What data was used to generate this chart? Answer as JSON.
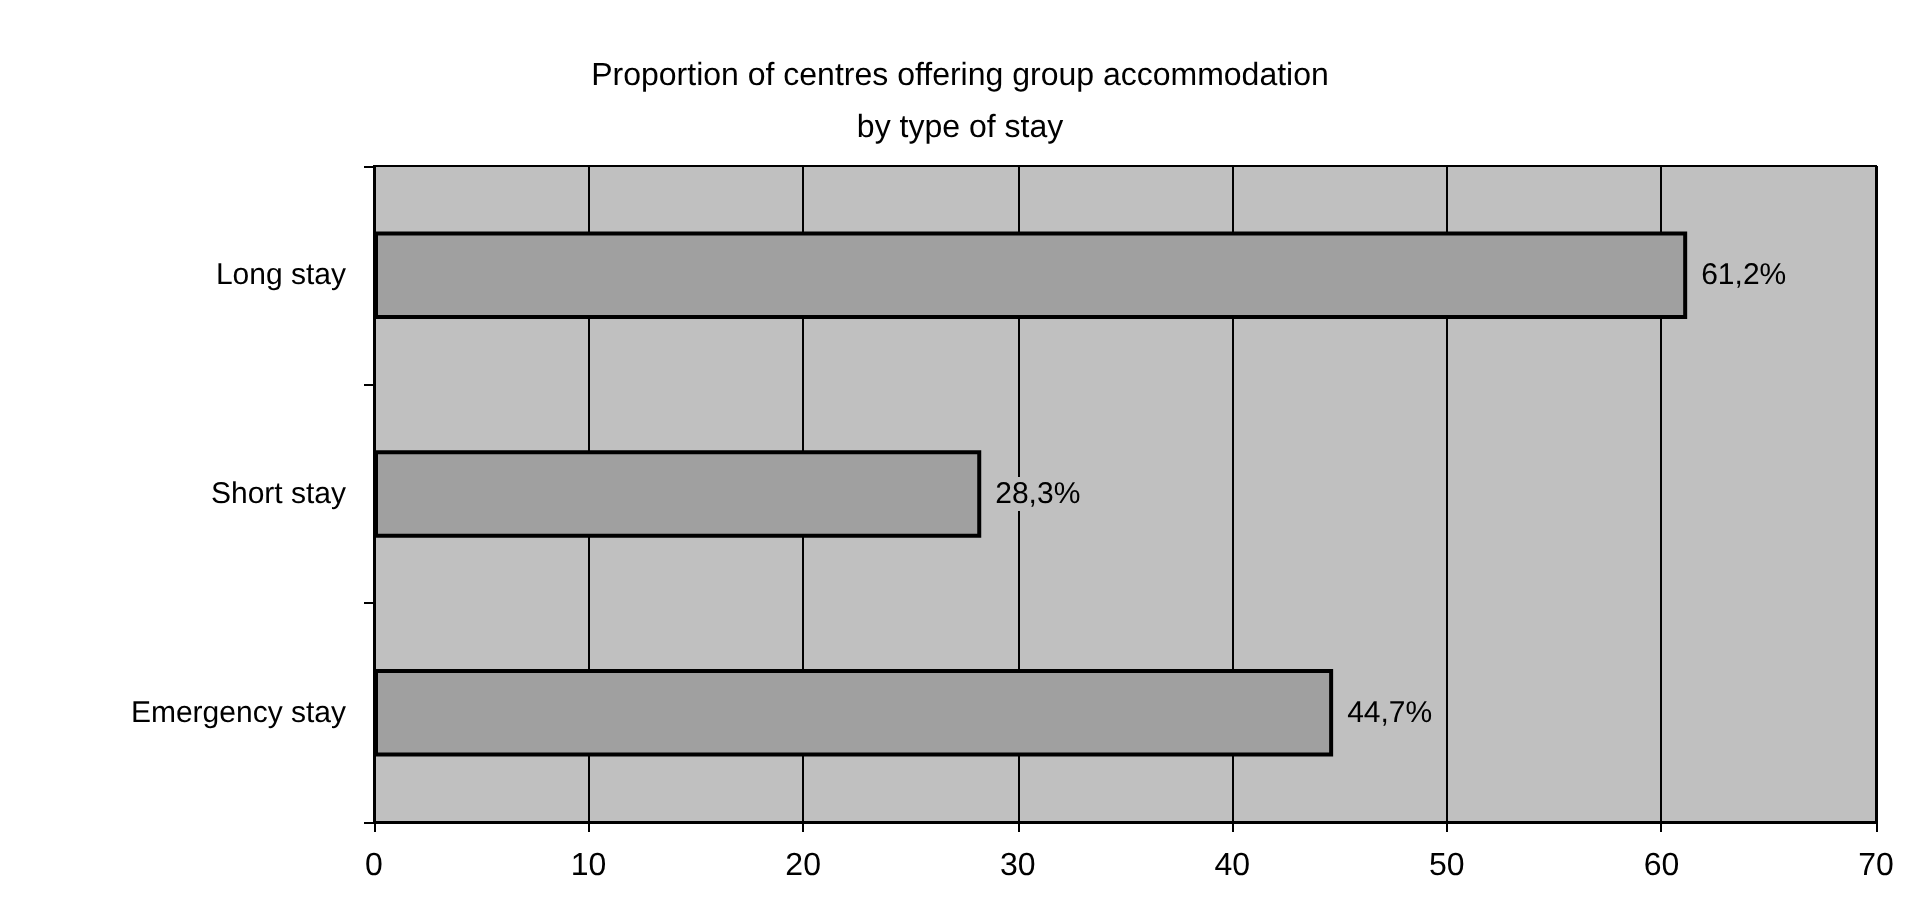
{
  "chart_data": {
    "type": "bar",
    "orientation": "horizontal",
    "title": "Proportion of centres offering group accommodation\nby type of stay",
    "categories": [
      "Long stay",
      "Short stay",
      "Emergency stay"
    ],
    "values": [
      61.2,
      28.3,
      44.7
    ],
    "value_labels": [
      "61,2%",
      "28,3%",
      "44,7%"
    ],
    "color": "#a0a0a0",
    "xlim": [
      0,
      70
    ],
    "xticks": [
      0,
      10,
      20,
      30,
      40,
      50,
      60,
      70
    ],
    "grid": "x"
  }
}
